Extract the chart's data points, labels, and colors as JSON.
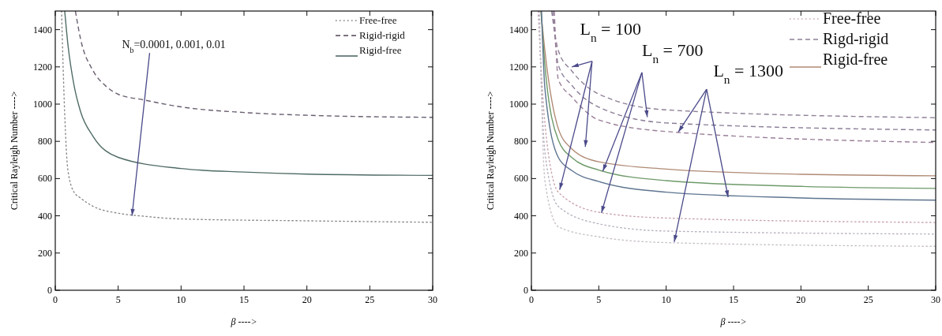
{
  "chart_data": [
    {
      "type": "line",
      "xlabel": "β ---->",
      "ylabel": "Critical Rayleigh Number ---->",
      "xlim": [
        0,
        30
      ],
      "ylim": [
        0,
        1500
      ],
      "xticks": [
        0,
        5,
        10,
        15,
        20,
        25,
        30
      ],
      "yticks": [
        0,
        200,
        400,
        600,
        800,
        1000,
        1200,
        1400
      ],
      "legend": "top right",
      "grid": false,
      "annotations": [
        {
          "text": "N$_{b}$=0.0001, 0.001, 0.01",
          "x": 6.1,
          "y": 400
        }
      ],
      "series": [
        {
          "name": "Free-free",
          "color": "#8a8a8a",
          "line_style": "dotted",
          "x": [
            0.5,
            0.75,
            1,
            1.5,
            2,
            3,
            5,
            7,
            10,
            20,
            30
          ],
          "values": [
            1500,
            947,
            647,
            526,
            496,
            451,
            414,
            398,
            383,
            373,
            365
          ]
        },
        {
          "name": "Rigid-rigid",
          "color": "#6a5f70",
          "line_style": "dashed",
          "x": [
            1.6,
            2,
            3,
            4,
            5,
            7,
            10,
            15,
            20,
            30
          ],
          "values": [
            1500,
            1353,
            1180,
            1098,
            1053,
            1023,
            985,
            955,
            940,
            929
          ]
        },
        {
          "name": "Rigid-free",
          "color": "#4f6b66",
          "line_style": "solid",
          "x": [
            0.75,
            1,
            1.5,
            2,
            3,
            5,
            10,
            15,
            20,
            30
          ],
          "values": [
            1500,
            1323,
            1098,
            962,
            827,
            714,
            654,
            635,
            624,
            617
          ]
        }
      ]
    },
    {
      "type": "line",
      "xlabel": "β ---->",
      "ylabel": "Critical Rayleigh Number ---->",
      "xlim": [
        0,
        30
      ],
      "ylim": [
        0,
        1500
      ],
      "xticks": [
        0,
        5,
        10,
        15,
        20,
        25,
        30
      ],
      "yticks": [
        0,
        200,
        400,
        600,
        800,
        1000,
        1200,
        1400
      ],
      "legend": "top right",
      "grid": false,
      "annotations": [
        {
          "text": "L$_{n}$ = 100",
          "x": 2.1,
          "y": 540
        },
        {
          "text": "L$_{n}$ = 700",
          "x": 5.2,
          "y": 416
        },
        {
          "text": "L$_{n}$ = 1300",
          "x": 10.6,
          "y": 260
        }
      ],
      "series": [
        {
          "name": "Free-free",
          "color": "#c9a3ae",
          "line_style": "dotted",
          "x": [
            0.5,
            1,
            2,
            5,
            10,
            30
          ],
          "values": [
            1500,
            899,
            527,
            419,
            388,
            364
          ]
        },
        {
          "color": "#b9b0c0",
          "line_style": "dotted",
          "x": [
            0.55,
            1,
            2,
            5,
            10,
            30
          ],
          "values": [
            1500,
            744,
            450,
            357,
            318,
            302
          ]
        },
        {
          "color": "#c8c0c8",
          "line_style": "dotted",
          "x": [
            0.6,
            1,
            2,
            5,
            10,
            30
          ],
          "values": [
            1500,
            589,
            341,
            287,
            256,
            236
          ]
        },
        {
          "name": "Rigd-rigid",
          "color": "#8f8097",
          "line_style": "dashed",
          "x": [
            1.5,
            2,
            3,
            5,
            10,
            30
          ],
          "values": [
            1500,
            1287,
            1178,
            1054,
            969,
            927
          ]
        },
        {
          "color": "#8a7c97",
          "line_style": "dashed",
          "x": [
            1.6,
            2,
            3,
            5,
            10,
            30
          ],
          "values": [
            1500,
            1209,
            1101,
            984,
            899,
            861
          ]
        },
        {
          "color": "#9a7f99",
          "line_style": "dashed",
          "x": [
            1.7,
            2,
            3,
            5,
            10,
            30
          ],
          "values": [
            1500,
            1132,
            1039,
            915,
            853,
            794
          ]
        },
        {
          "name": "Rigid-free",
          "color": "#b08a74",
          "line_style": "solid",
          "x": [
            0.7,
            1,
            2,
            3,
            5,
            10,
            20,
            30
          ],
          "values": [
            1500,
            1287,
            868,
            760,
            690,
            651,
            623,
            615
          ]
        },
        {
          "color": "#6e9a6a",
          "line_style": "solid",
          "x": [
            0.72,
            1,
            2,
            3,
            5,
            10,
            20,
            30
          ],
          "values": [
            1500,
            1209,
            806,
            713,
            646,
            589,
            558,
            547
          ]
        },
        {
          "color": "#5e7590",
          "line_style": "solid",
          "x": [
            0.75,
            1,
            2,
            3,
            5,
            10,
            20,
            30
          ],
          "values": [
            1500,
            1085,
            713,
            643,
            584,
            527,
            496,
            484
          ]
        }
      ]
    }
  ]
}
